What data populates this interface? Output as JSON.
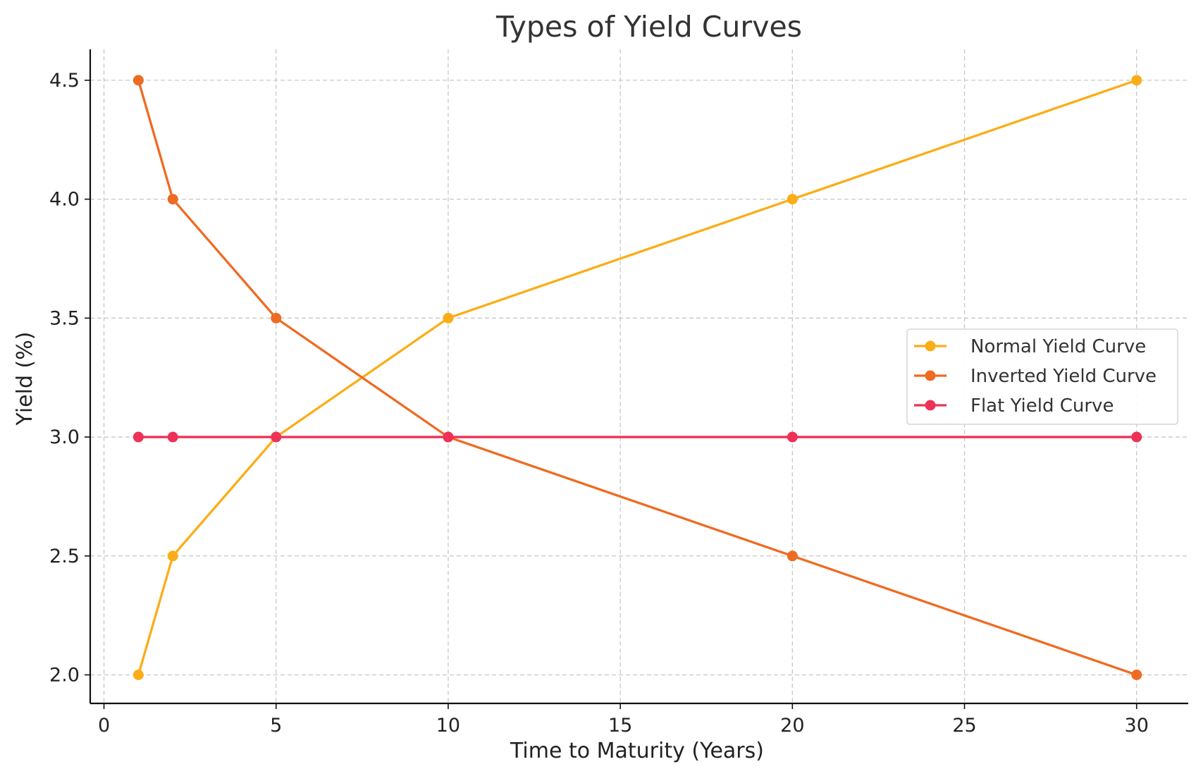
{
  "chart_data": {
    "type": "line",
    "title": "Types of Yield Curves",
    "xlabel": "Time to Maturity (Years)",
    "ylabel": "Yield (%)",
    "x": [
      1,
      2,
      5,
      10,
      20,
      30
    ],
    "xlim": [
      -0.4,
      31.5
    ],
    "ylim": [
      1.88,
      4.63
    ],
    "xticks": [
      0,
      5,
      10,
      15,
      20,
      25,
      30
    ],
    "xtick_labels": [
      "0",
      "5",
      "10",
      "15",
      "20",
      "25",
      "30"
    ],
    "yticks": [
      2.0,
      2.5,
      3.0,
      3.5,
      4.0,
      4.5
    ],
    "ytick_labels": [
      "2.0",
      "2.5",
      "3.0",
      "3.5",
      "4.0",
      "4.5"
    ],
    "grid": true,
    "legend_position": "center-right",
    "series": [
      {
        "name": "Normal Yield Curve",
        "values": [
          2.0,
          2.5,
          3.0,
          3.5,
          4.0,
          4.5
        ],
        "color": "#FBAD17",
        "marker": "circle"
      },
      {
        "name": "Inverted Yield Curve",
        "values": [
          4.5,
          4.0,
          3.5,
          3.0,
          2.5,
          2.0
        ],
        "color": "#EE6B22",
        "marker": "circle"
      },
      {
        "name": "Flat Yield Curve",
        "values": [
          3.0,
          3.0,
          3.0,
          3.0,
          3.0,
          3.0
        ],
        "color": "#EE3157",
        "marker": "circle"
      }
    ]
  }
}
